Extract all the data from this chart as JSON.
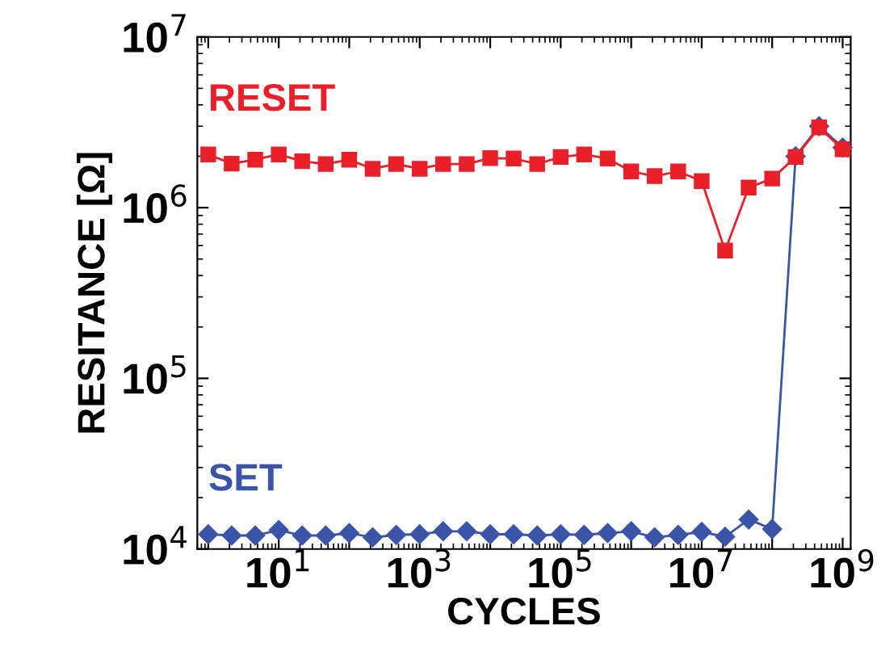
{
  "chart_data": {
    "type": "line",
    "xlabel": "CYCLES",
    "ylabel": "RESITANCE [Ω]",
    "log": "xy",
    "grid": false,
    "legend": false,
    "x": [
      1,
      2.15,
      4.64,
      10,
      21.5,
      46.4,
      100,
      215,
      464,
      1000,
      2150,
      4640,
      10000,
      21500,
      46400,
      100000,
      215000,
      464000,
      1000000,
      2150000,
      4640000,
      10000000,
      21500000,
      46400000,
      100000000,
      215000000,
      464000000,
      1000000000
    ],
    "series": [
      {
        "name": "RESET",
        "color": "#e8202a",
        "marker": "square",
        "values": [
          2050000,
          1810000,
          1910000,
          2050000,
          1870000,
          1800000,
          1910000,
          1690000,
          1800000,
          1690000,
          1800000,
          1800000,
          1950000,
          1940000,
          1800000,
          1980000,
          2050000,
          1940000,
          1630000,
          1530000,
          1630000,
          1430000,
          560000,
          1310000,
          1480000,
          1980000,
          2950000,
          2200000
        ]
      },
      {
        "name": "SET",
        "color": "#3a55a8",
        "marker": "diamond",
        "values": [
          12200,
          12000,
          12000,
          12900,
          12000,
          12000,
          12400,
          11700,
          12100,
          12200,
          12700,
          12700,
          12200,
          12200,
          12000,
          12200,
          12100,
          12400,
          12700,
          11700,
          12100,
          12600,
          11800,
          14900,
          13100,
          2000000,
          3000000,
          2250000
        ]
      }
    ],
    "xlim": [
      0.7,
      1300000000
    ],
    "ylim": [
      10000,
      10000000
    ],
    "xticks": [
      {
        "value": 1,
        "label": null
      },
      {
        "value": 10,
        "label": "10$^{1}$"
      },
      {
        "value": 100,
        "label": null
      },
      {
        "value": 1000,
        "label": "10$^{3}$"
      },
      {
        "value": 10000,
        "label": null
      },
      {
        "value": 100000,
        "label": "10$^{5}$"
      },
      {
        "value": 1000000,
        "label": null
      },
      {
        "value": 10000000,
        "label": "10$^{7}$"
      },
      {
        "value": 100000000,
        "label": null
      },
      {
        "value": 1000000000,
        "label": "10$^{9}$"
      }
    ],
    "yticks": [
      {
        "value": 10000,
        "label": "10$^{4}$"
      },
      {
        "value": 100000,
        "label": "10$^{5}$"
      },
      {
        "value": 1000000,
        "label": "10$^{6}$"
      },
      {
        "value": 10000000,
        "label": "10$^{7}$"
      }
    ]
  }
}
